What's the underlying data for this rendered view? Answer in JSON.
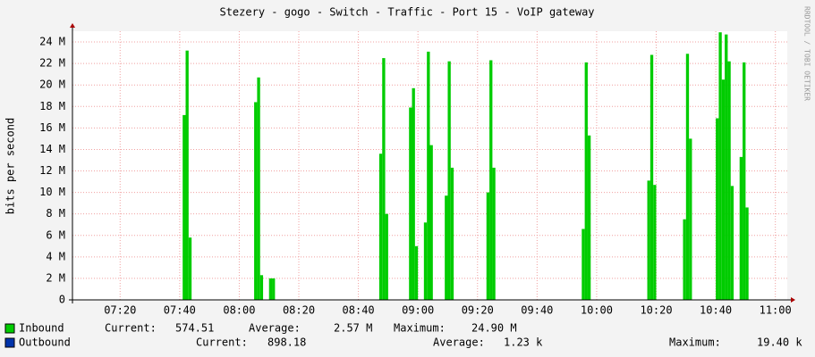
{
  "chart_data": {
    "type": "area",
    "title": "Stezery - gogo - Switch - Traffic - Port 15 - VoIP gateway",
    "y_label": "bits per second",
    "watermark": "RRDTOOL / TOBI OETIKER",
    "xlim": [
      424,
      664
    ],
    "xticks": [
      {
        "value": 440,
        "label": "07:20"
      },
      {
        "value": 460,
        "label": "07:40"
      },
      {
        "value": 480,
        "label": "08:00"
      },
      {
        "value": 500,
        "label": "08:20"
      },
      {
        "value": 520,
        "label": "08:40"
      },
      {
        "value": 540,
        "label": "09:00"
      },
      {
        "value": 560,
        "label": "09:20"
      },
      {
        "value": 580,
        "label": "09:40"
      },
      {
        "value": 600,
        "label": "10:00"
      },
      {
        "value": 620,
        "label": "10:20"
      },
      {
        "value": 640,
        "label": "10:40"
      },
      {
        "value": 660,
        "label": "11:00"
      }
    ],
    "ylim": [
      0,
      25
    ],
    "yticks": [
      0,
      {
        "value": 2,
        "label": "2 M"
      },
      {
        "value": 4,
        "label": "4 M"
      },
      {
        "value": 6,
        "label": "6 M"
      },
      {
        "value": 8,
        "label": "8 M"
      },
      {
        "value": 10,
        "label": "10 M"
      },
      {
        "value": 12,
        "label": "12 M"
      },
      {
        "value": 14,
        "label": "14 M"
      },
      {
        "value": 16,
        "label": "16 M"
      },
      {
        "value": 18,
        "label": "18 M"
      },
      {
        "value": 20,
        "label": "20 M"
      },
      {
        "value": 22,
        "label": "22 M"
      },
      {
        "value": 24,
        "label": "24 M"
      }
    ],
    "grid": true,
    "x": [
      461,
      462,
      463,
      464,
      485,
      486,
      487,
      488,
      490,
      491,
      492,
      527,
      528,
      529,
      530,
      537,
      538,
      539,
      540,
      542,
      543,
      544,
      545,
      549,
      550,
      551,
      552,
      563,
      564,
      565,
      566,
      595,
      596,
      597,
      598,
      617,
      618,
      619,
      620,
      629,
      630,
      631,
      632,
      640,
      641,
      642,
      643,
      644,
      645,
      646,
      648,
      649,
      650,
      651
    ],
    "series": [
      {
        "name": "Inbound",
        "color": "#00cc00",
        "stats": [
          "Current:",
          "574.51",
          "Average:",
          "2.57 M",
          "Maximum:",
          "24.90 M"
        ],
        "values": [
          17.2,
          23.2,
          5.8,
          0,
          18.4,
          20.7,
          2.3,
          0,
          2,
          2,
          0,
          13.6,
          22.5,
          8,
          0,
          17.9,
          19.7,
          5,
          0,
          7.2,
          23.1,
          14.4,
          0,
          9.7,
          22.2,
          12.3,
          0,
          10,
          22.3,
          12.3,
          0,
          6.6,
          22.1,
          15.3,
          0,
          11.1,
          22.8,
          10.7,
          0,
          7.5,
          22.9,
          15,
          0,
          16.9,
          24.9,
          20.5,
          24.7,
          22.2,
          10.6,
          0,
          13.3,
          22.1,
          8.6,
          0
        ]
      },
      {
        "name": "Outbound",
        "color": "#0033aa",
        "stats": [
          "Current:",
          "898.18",
          "Average:",
          "1.23 k",
          "Maximum:",
          "19.40 k"
        ],
        "values": [
          0,
          0,
          0,
          0,
          0,
          0,
          0,
          0,
          0,
          0,
          0,
          0,
          0,
          0,
          0,
          0,
          0,
          0,
          0,
          0,
          0,
          0,
          0,
          0,
          0,
          0,
          0,
          0,
          0,
          0,
          0,
          0,
          0,
          0,
          0,
          0,
          0,
          0,
          0,
          0,
          0,
          0,
          0,
          0,
          0,
          0,
          0,
          0,
          0,
          0,
          0,
          0,
          0,
          0
        ]
      }
    ]
  }
}
